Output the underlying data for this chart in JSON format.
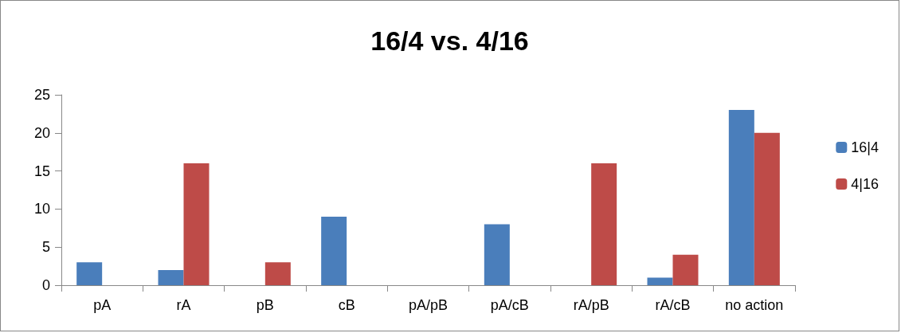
{
  "chart_data": {
    "type": "bar",
    "title": "16/4 vs. 4/16",
    "categories": [
      "pA",
      "rA",
      "pB",
      "cB",
      "pA/pB",
      "pA/cB",
      "rA/pB",
      "rA/cB",
      "no action"
    ],
    "series": [
      {
        "name": "16|4",
        "color": "#4a7ebb",
        "values": [
          3,
          2,
          0,
          9,
          0,
          8,
          0,
          1,
          23
        ]
      },
      {
        "name": "4|16",
        "color": "#be4b48",
        "values": [
          0,
          16,
          3,
          0,
          0,
          0,
          16,
          4,
          20
        ]
      }
    ],
    "ylim": [
      0,
      25
    ],
    "yticks": [
      0,
      5,
      10,
      15,
      20,
      25
    ],
    "grid": false,
    "legend": "right"
  }
}
